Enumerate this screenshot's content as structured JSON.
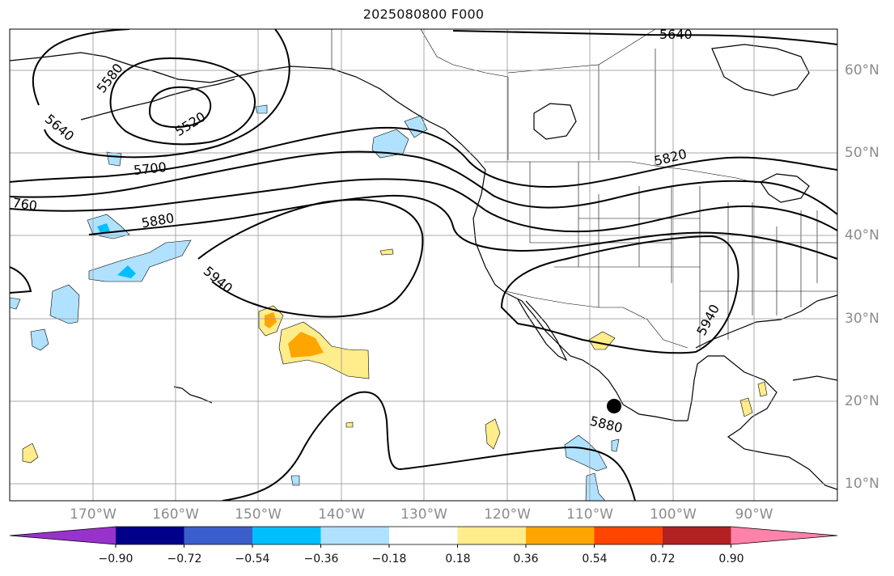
{
  "title": "2025080800 F000",
  "map": {
    "lon_labels": [
      "170°W",
      "160°W",
      "150°W",
      "140°W",
      "130°W",
      "120°W",
      "110°W",
      "100°W",
      "90°W"
    ],
    "lat_labels": [
      "60°N",
      "50°N",
      "40°N",
      "30°N",
      "20°N",
      "10°N"
    ],
    "contour_labels": [
      "5640",
      "5580",
      "5640",
      "5520",
      "5700",
      "760",
      "5880",
      "5940",
      "5820",
      "5940",
      "5880"
    ],
    "contour_line_color": "#000000",
    "grid_color": "#999999",
    "marker": "station-dot"
  },
  "colorbar": {
    "colors": [
      "#9932cc",
      "#00008b",
      "#3a5fcd",
      "#00bfff",
      "#b0e2ff",
      "#ffffff",
      "#ffec8b",
      "#ffa500",
      "#ff4500",
      "#b22222",
      "#ff82ab"
    ],
    "tick_labels": [
      "−0.90",
      "−0.72",
      "−0.54",
      "−0.36",
      "−0.18",
      "0.18",
      "0.36",
      "0.54",
      "0.72",
      "0.90"
    ]
  }
}
